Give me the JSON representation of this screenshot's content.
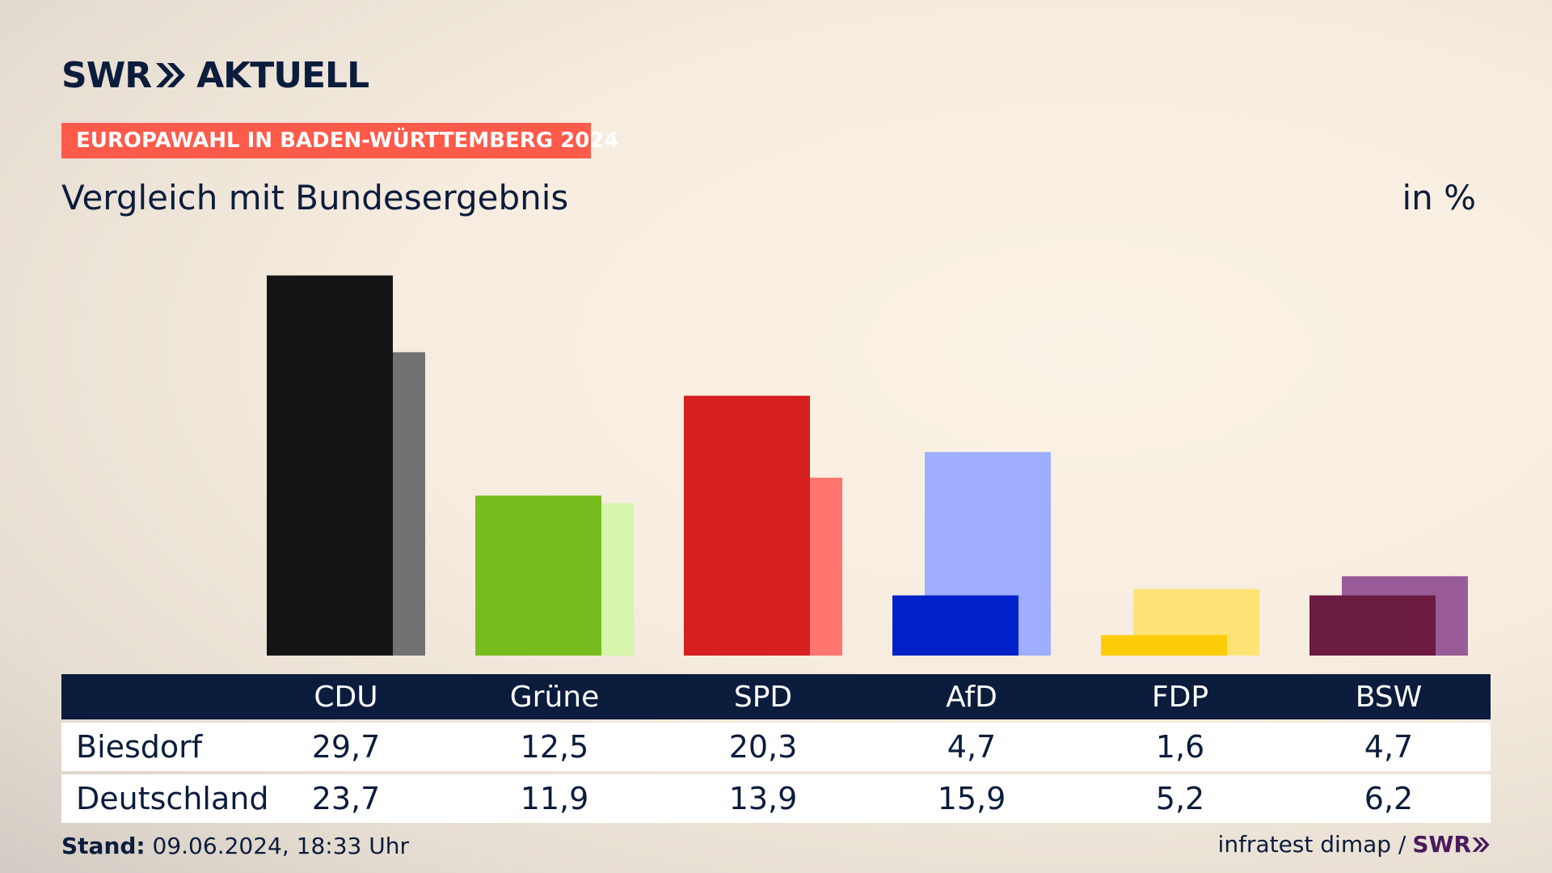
{
  "header": {
    "logo_text": "SWR",
    "logo_suffix": "AKTUELL",
    "tag": "EUROPAWAHL IN BADEN-WÜRTTEMBERG 2024",
    "subtitle": "Vergleich mit Bundesergebnis",
    "unit": "in %"
  },
  "chart_data": {
    "type": "bar",
    "categories": [
      "CDU",
      "Grüne",
      "SPD",
      "AfD",
      "FDP",
      "BSW"
    ],
    "series": [
      {
        "name": "Biesdorf",
        "values": [
          29.7,
          12.5,
          20.3,
          4.7,
          1.6,
          4.7
        ]
      },
      {
        "name": "Deutschland",
        "values": [
          23.7,
          11.9,
          13.9,
          15.9,
          5.2,
          6.2
        ]
      }
    ],
    "labels_primary": [
      "29,7",
      "12,5",
      "20,3",
      "4,7",
      "1,6",
      "4,7"
    ],
    "labels_secondary": [
      "23,7",
      "11,9",
      "13,9",
      "15,9",
      "5,2",
      "6,2"
    ],
    "colors_primary": [
      "#141414",
      "#78bd1e",
      "#d61f1f",
      "#0021c8",
      "#fecd0a",
      "#6b1a40"
    ],
    "colors_secondary": [
      "#727272",
      "#d7f6ab",
      "#ff7670",
      "#9fadff",
      "#fde375",
      "#9a5c99"
    ],
    "ylim": [
      0,
      30
    ]
  },
  "footer": {
    "stand_label": "Stand:",
    "stand_value": "09.06.2024, 18:33 Uhr",
    "source": "infratest dimap /",
    "source_logo": "SWR"
  }
}
